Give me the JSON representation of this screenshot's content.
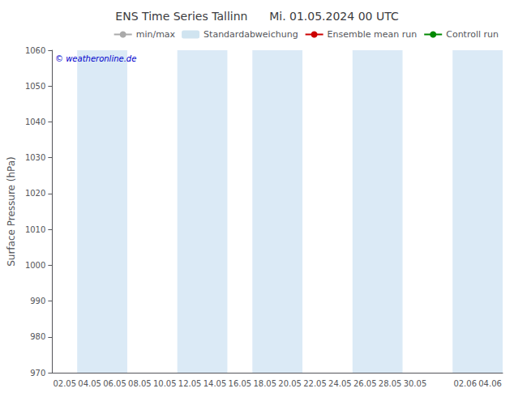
{
  "chart_data": {
    "type": "line",
    "title": "ENS Time Series Tallinn      Mi. 01.05.2024 00 UTC",
    "ylabel": "Surface Pressure (hPa)",
    "categories": [
      "02.05",
      "04.05",
      "06.05",
      "08.05",
      "10.05",
      "12.05",
      "14.05",
      "16.05",
      "18.05",
      "20.05",
      "22.05",
      "24.05",
      "26.05",
      "28.05",
      "30.05",
      null,
      "02.06",
      "04.06"
    ],
    "ylim": [
      970,
      1060
    ],
    "yticks": [
      970,
      980,
      990,
      1000,
      1010,
      1020,
      1030,
      1040,
      1050,
      1060
    ],
    "grid": false,
    "legend": "upper right",
    "series": [
      {
        "name": "min/max",
        "type": "line",
        "color": "#aaaaaa",
        "values": [
          null,
          null,
          null,
          null,
          null,
          null,
          null,
          null,
          null,
          null,
          null,
          null,
          null,
          null,
          null,
          null,
          null,
          null
        ]
      },
      {
        "name": "Standardabweichung",
        "type": "bar",
        "color": "#d0e4f0",
        "values": [
          null,
          null,
          null,
          null,
          null,
          null,
          null,
          null,
          null,
          null,
          null,
          null,
          null,
          null,
          null,
          null,
          null,
          null
        ]
      },
      {
        "name": "Ensemble mean run",
        "type": "line",
        "color": "#cc0000",
        "values": [
          null,
          null,
          null,
          null,
          null,
          null,
          null,
          null,
          null,
          null,
          null,
          null,
          null,
          null,
          null,
          null,
          null,
          null
        ]
      },
      {
        "name": "Controll run",
        "type": "line",
        "color": "#008800",
        "values": [
          null,
          null,
          null,
          null,
          null,
          null,
          null,
          null,
          null,
          null,
          null,
          null,
          null,
          null,
          null,
          null,
          null,
          null
        ]
      }
    ],
    "bands": {
      "color": "#dbeaf6",
      "ranges": [
        [
          "04.05",
          "06.05"
        ],
        [
          "12.05",
          "14.05"
        ],
        [
          "18.05",
          "20.05"
        ],
        [
          "26.05",
          "28.05"
        ],
        [
          "02.06",
          "04.06"
        ]
      ]
    },
    "annotations": [
      {
        "text": "© weatheronline.de",
        "color": "#0000cc"
      }
    ]
  }
}
